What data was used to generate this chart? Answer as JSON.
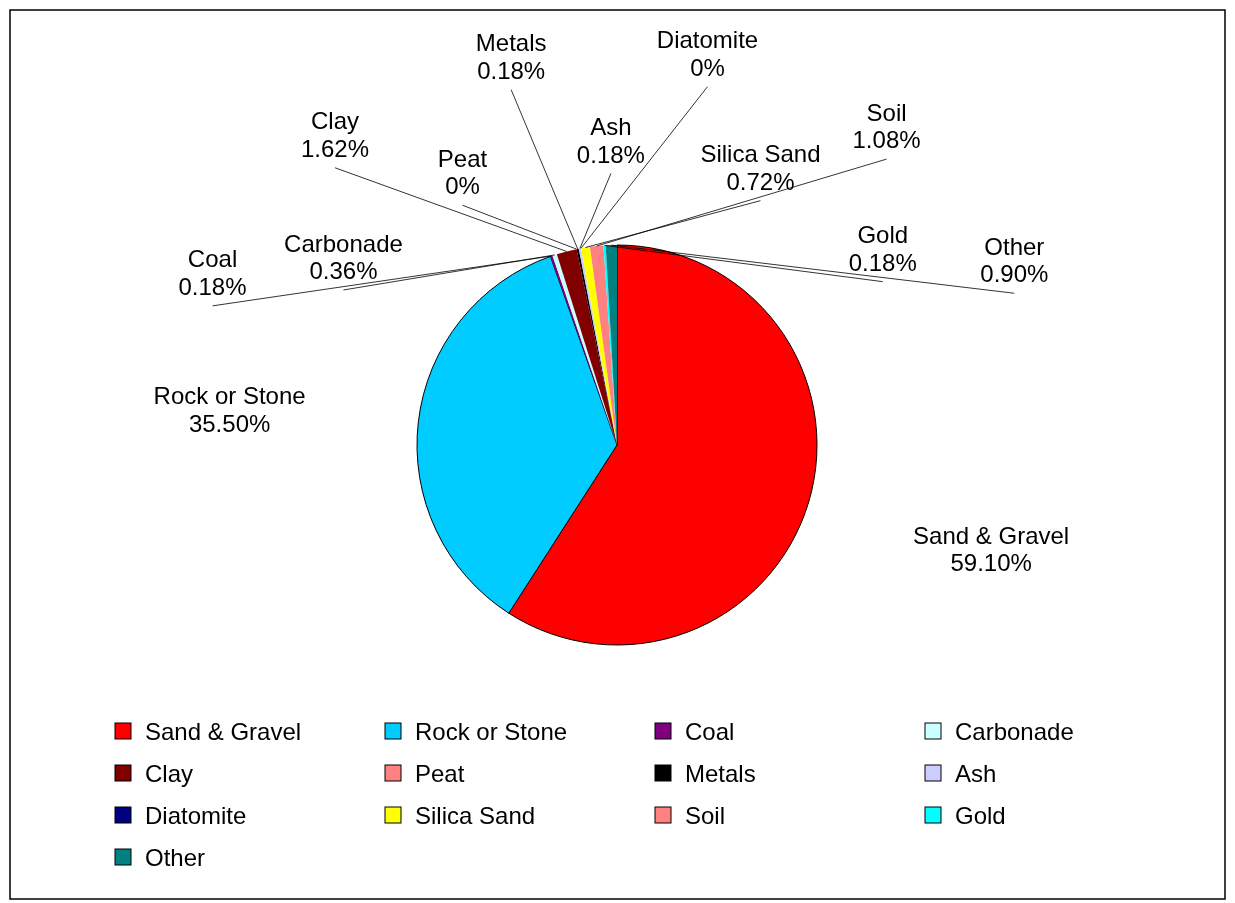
{
  "chart_data": {
    "type": "pie",
    "categories": [
      "Sand & Gravel",
      "Rock or Stone",
      "Coal",
      "Carbonade",
      "Clay",
      "Peat",
      "Metals",
      "Ash",
      "Diatomite",
      "Silica Sand",
      "Soil",
      "Gold",
      "Other"
    ],
    "values": [
      59.1,
      35.5,
      0.18,
      0.36,
      1.62,
      0,
      0.18,
      0.18,
      0,
      0.72,
      1.08,
      0.18,
      0.9
    ],
    "value_labels": [
      "59.10%",
      "35.50%",
      "0.18%",
      "0.36%",
      "1.62%",
      "0%",
      "0.18%",
      "0.18%",
      "0%",
      "0.72%",
      "1.08%",
      "0.18%",
      "0.90%"
    ],
    "colors": [
      "#ff0000",
      "#00ccff",
      "#800080",
      "#ccffff",
      "#800000",
      "#ff8080",
      "#000000",
      "#ccccff",
      "#000080",
      "#ffff00",
      "#ff8080",
      "#00ffff",
      "#008080"
    ],
    "legend": "bottom"
  }
}
